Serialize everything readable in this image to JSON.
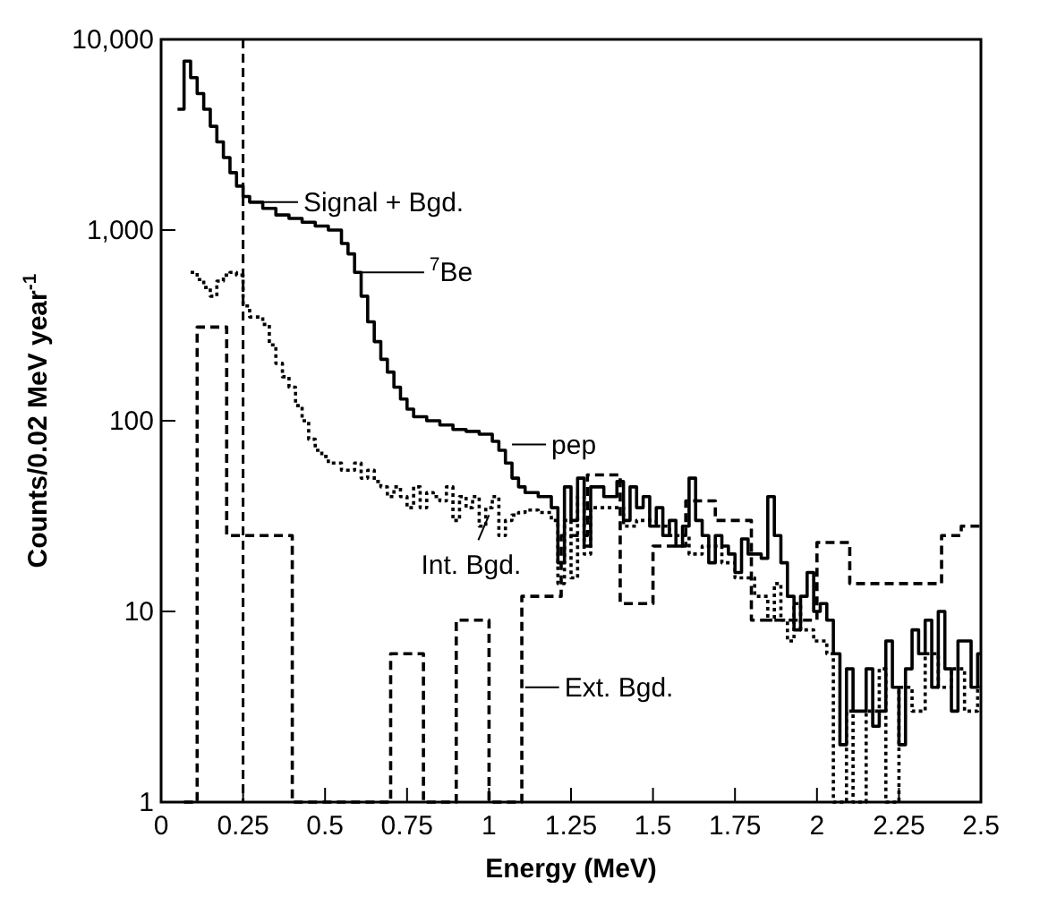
{
  "chart_data": {
    "type": "step",
    "xlabel": "Energy (MeV)",
    "ylabel": "Counts/0.02 MeV year$^{-1}$",
    "log": "y",
    "grid": false,
    "xlim": [
      0,
      2.5
    ],
    "xticks": [
      0,
      0.25,
      0.5,
      0.75,
      1,
      1.25,
      1.5,
      1.75,
      2,
      2.25,
      2.5
    ],
    "ylim": [
      1,
      10000
    ],
    "yticks": [
      1,
      10,
      100,
      {
        "value": 1000,
        "label": "1,000"
      },
      {
        "value": 10000,
        "label": "10,000"
      }
    ],
    "ref_lines": [
      {
        "axis": "x",
        "value": 0.25,
        "line_style": "dashed",
        "color": "#000000"
      }
    ],
    "annotations": [
      {
        "text": "Signal + Bgd.",
        "x": 0.27,
        "y": 1400
      },
      {
        "text": "$^{7}$Be",
        "x": 0.6,
        "y": 600
      },
      {
        "text": "pep",
        "x": 1.07,
        "y": 75
      },
      {
        "text": "Int. Bgd.",
        "x": 1.0,
        "y": 32
      },
      {
        "text": "Ext. Bgd.",
        "x": 1.11,
        "y": 4
      }
    ],
    "series": [
      {
        "color": "#000000",
        "line_style": "solid",
        "x": [
          0.05,
          0.07,
          0.09,
          0.11,
          0.13,
          0.15,
          0.17,
          0.19,
          0.21,
          0.23,
          0.25,
          0.27,
          0.31,
          0.35,
          0.39,
          0.43,
          0.47,
          0.51,
          0.55,
          0.57,
          0.59,
          0.61,
          0.63,
          0.65,
          0.67,
          0.69,
          0.71,
          0.73,
          0.75,
          0.77,
          0.81,
          0.85,
          0.89,
          0.93,
          0.97,
          1.01,
          1.03,
          1.05,
          1.07,
          1.09,
          1.11,
          1.15,
          1.19,
          1.21,
          1.23,
          1.25,
          1.27,
          1.29,
          1.31,
          1.35,
          1.39,
          1.41,
          1.43,
          1.45,
          1.47,
          1.49,
          1.51,
          1.53,
          1.55,
          1.57,
          1.59,
          1.61,
          1.63,
          1.65,
          1.67,
          1.69,
          1.71,
          1.73,
          1.75,
          1.77,
          1.79,
          1.81,
          1.83,
          1.85,
          1.87,
          1.89,
          1.91,
          1.93,
          1.95,
          1.97,
          1.99,
          2.01,
          2.03,
          2.05,
          2.07,
          2.09,
          2.11,
          2.13,
          2.15,
          2.17,
          2.19,
          2.21,
          2.23,
          2.25,
          2.27,
          2.29,
          2.31,
          2.33,
          2.35,
          2.37,
          2.39,
          2.41,
          2.43,
          2.45,
          2.47,
          2.49,
          2.5
        ],
        "values": [
          4300,
          7700,
          6300,
          5200,
          4300,
          3500,
          2900,
          2400,
          2000,
          1700,
          1500,
          1400,
          1300,
          1200,
          1150,
          1100,
          1050,
          1000,
          850,
          750,
          600,
          450,
          330,
          260,
          210,
          180,
          150,
          130,
          115,
          105,
          100,
          95,
          90,
          88,
          85,
          78,
          70,
          60,
          50,
          45,
          42,
          40,
          35,
          18,
          45,
          30,
          50,
          22,
          45,
          40,
          48,
          30,
          45,
          35,
          40,
          28,
          35,
          25,
          30,
          22,
          28,
          50,
          30,
          25,
          18,
          25,
          22,
          20,
          16,
          24,
          20,
          20,
          19,
          40,
          25,
          18,
          12,
          8,
          12,
          16,
          10,
          11,
          9,
          6,
          2,
          5,
          3,
          3,
          5,
          2.5,
          3,
          7,
          4,
          2,
          5,
          8,
          6,
          9,
          4,
          10,
          5,
          3,
          7,
          7,
          4,
          6,
          6
        ]
      },
      {
        "color": "#000000",
        "line_style": "dotted",
        "x": [
          0.09,
          0.11,
          0.13,
          0.15,
          0.17,
          0.19,
          0.21,
          0.23,
          0.25,
          0.27,
          0.31,
          0.33,
          0.35,
          0.37,
          0.39,
          0.41,
          0.43,
          0.45,
          0.47,
          0.49,
          0.51,
          0.55,
          0.59,
          0.61,
          0.63,
          0.65,
          0.67,
          0.69,
          0.71,
          0.73,
          0.75,
          0.77,
          0.79,
          0.81,
          0.83,
          0.85,
          0.87,
          0.89,
          0.91,
          0.93,
          0.95,
          0.97,
          0.99,
          1.01,
          1.03,
          1.05,
          1.07,
          1.09,
          1.11,
          1.15,
          1.19,
          1.21,
          1.23,
          1.25,
          1.27,
          1.29,
          1.31,
          1.35,
          1.41,
          1.45,
          1.51,
          1.55,
          1.61,
          1.65,
          1.71,
          1.75,
          1.81,
          1.85,
          1.87,
          1.89,
          1.91,
          1.93,
          1.95,
          1.99,
          2.03,
          2.05,
          2.09,
          2.11,
          2.15,
          2.19,
          2.21,
          2.25,
          2.29,
          2.33,
          2.37,
          2.41,
          2.45,
          2.49,
          2.5
        ],
        "values": [
          600,
          550,
          500,
          450,
          540,
          580,
          600,
          580,
          400,
          350,
          320,
          250,
          200,
          170,
          150,
          120,
          100,
          80,
          70,
          65,
          60,
          55,
          60,
          50,
          55,
          48,
          45,
          40,
          45,
          40,
          35,
          45,
          35,
          42,
          40,
          38,
          45,
          30,
          40,
          35,
          40,
          28,
          35,
          40,
          25,
          30,
          32,
          33,
          34,
          33,
          30,
          14,
          30,
          15,
          40,
          20,
          35,
          35,
          28,
          30,
          28,
          25,
          20,
          22,
          18,
          15,
          12,
          9,
          14,
          9,
          7,
          11,
          8,
          7,
          6,
          1,
          3,
          1,
          3,
          5,
          1,
          4,
          3,
          6,
          4,
          5,
          3,
          4,
          4
        ]
      },
      {
        "color": "#000000",
        "line_style": "dashed",
        "x": [
          0.07,
          0.11,
          0.2,
          0.4,
          0.7,
          0.8,
          0.9,
          1.0,
          1.1,
          1.22,
          1.3,
          1.4,
          1.5,
          1.6,
          1.69,
          1.8,
          2.0,
          2.1,
          2.38,
          2.44,
          2.5
        ],
        "values": [
          1,
          310,
          25,
          1,
          6,
          1,
          9,
          1,
          12,
          25,
          52,
          11,
          22,
          38,
          30,
          9,
          23,
          14,
          25,
          28,
          28
        ]
      }
    ]
  }
}
